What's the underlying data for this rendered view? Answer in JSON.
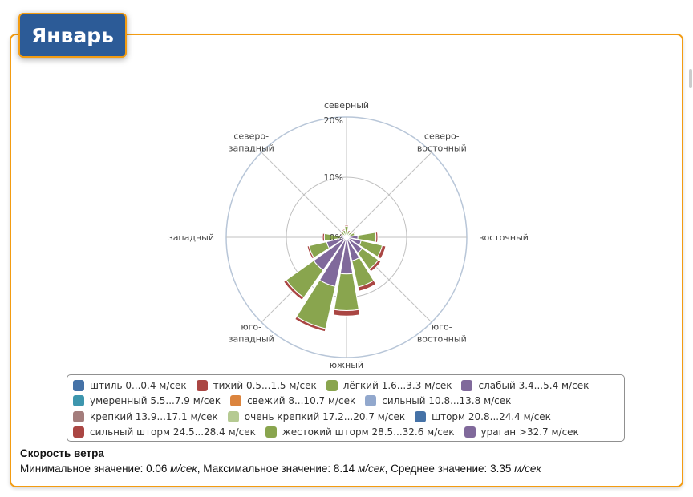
{
  "header": {
    "title": "Январь"
  },
  "chart_data": {
    "type": "bar",
    "subtype": "polar-stacked-windrose",
    "directions": [
      "N",
      "NNE",
      "NE",
      "ENE",
      "E",
      "ESE",
      "SE",
      "SSE",
      "S",
      "SSW",
      "SW",
      "WSW",
      "W",
      "WNW",
      "NW",
      "NNW"
    ],
    "direction_labels": [
      {
        "dir": "N",
        "text": [
          "северный"
        ]
      },
      {
        "dir": "NE",
        "text": [
          "северо-",
          "восточный"
        ]
      },
      {
        "dir": "E",
        "text": [
          "восточный"
        ]
      },
      {
        "dir": "SE",
        "text": [
          "юго-",
          "восточный"
        ]
      },
      {
        "dir": "S",
        "text": [
          "южный"
        ]
      },
      {
        "dir": "SW",
        "text": [
          "юго-",
          "западный"
        ]
      },
      {
        "dir": "W",
        "text": [
          "западный"
        ]
      },
      {
        "dir": "NW",
        "text": [
          "северо-",
          "западный"
        ]
      }
    ],
    "radial_ticks": [
      "0%",
      "10%",
      "20%"
    ],
    "rmax": 20,
    "unit": "%",
    "series": [
      {
        "name": "слабый 3.4...5.4 м/сек",
        "color": "#80699B",
        "values": [
          0.3,
          0.2,
          0.3,
          0.5,
          1.9,
          2.5,
          3.2,
          4.0,
          6.1,
          8.4,
          6.7,
          3.4,
          1.0,
          0.3,
          0.4,
          0.3
        ]
      },
      {
        "name": "лёгкий 1.6...3.3 м/сек",
        "color": "#89A54E",
        "values": [
          1.5,
          0.8,
          0.7,
          0.9,
          3.0,
          3.6,
          3.3,
          4.5,
          6.1,
          7.2,
          5.6,
          3.0,
          2.7,
          0.6,
          0.7,
          0.9
        ]
      },
      {
        "name": "тихий 0.5...1.5 м/сек",
        "color": "#AA4643",
        "values": [
          0.2,
          0.2,
          0.2,
          0.2,
          0.3,
          0.6,
          0.5,
          0.7,
          0.9,
          0.5,
          0.5,
          0.3,
          0.3,
          0.2,
          0.2,
          0.2
        ]
      }
    ],
    "legend_position": "bottom"
  },
  "legend": {
    "rows": [
      [
        {
          "label": "штиль 0...0.4 м/сек",
          "color": "#4572A7"
        },
        {
          "label": "тихий 0.5...1.5 м/сек",
          "color": "#AA4643"
        },
        {
          "label": "лёгкий 1.6...3.3 м/сек",
          "color": "#89A54E"
        },
        {
          "label": "слабый 3.4...5.4 м/сек",
          "color": "#80699B"
        }
      ],
      [
        {
          "label": "умеренный 5.5...7.9 м/сек",
          "color": "#3D96AE"
        },
        {
          "label": "свежий 8...10.7 м/сек",
          "color": "#DB843D"
        },
        {
          "label": "сильный 10.8...13.8 м/сек",
          "color": "#92A8CD"
        }
      ],
      [
        {
          "label": "крепкий 13.9...17.1 м/сек",
          "color": "#A47D7C"
        },
        {
          "label": "очень крепкий 17.2...20.7 м/сек",
          "color": "#B5CA92"
        },
        {
          "label": "шторм 20.8...24.4 м/сек",
          "color": "#4572A7"
        }
      ],
      [
        {
          "label": "сильный шторм 24.5...28.4 м/сек",
          "color": "#AA4643"
        },
        {
          "label": "жестокий шторм 28.5...32.6 м/сек",
          "color": "#89A54E"
        },
        {
          "label": "ураган >32.7 м/сек",
          "color": "#80699B"
        }
      ]
    ]
  },
  "stats": {
    "title": "Скорость ветра",
    "min_label": "Минимальное значение: ",
    "min": "0.06",
    "max_label": ", Максимальное значение: ",
    "max": "8.14",
    "avg_label": ", Среднее значение: ",
    "avg": "3.35",
    "unit": "м/сек"
  }
}
